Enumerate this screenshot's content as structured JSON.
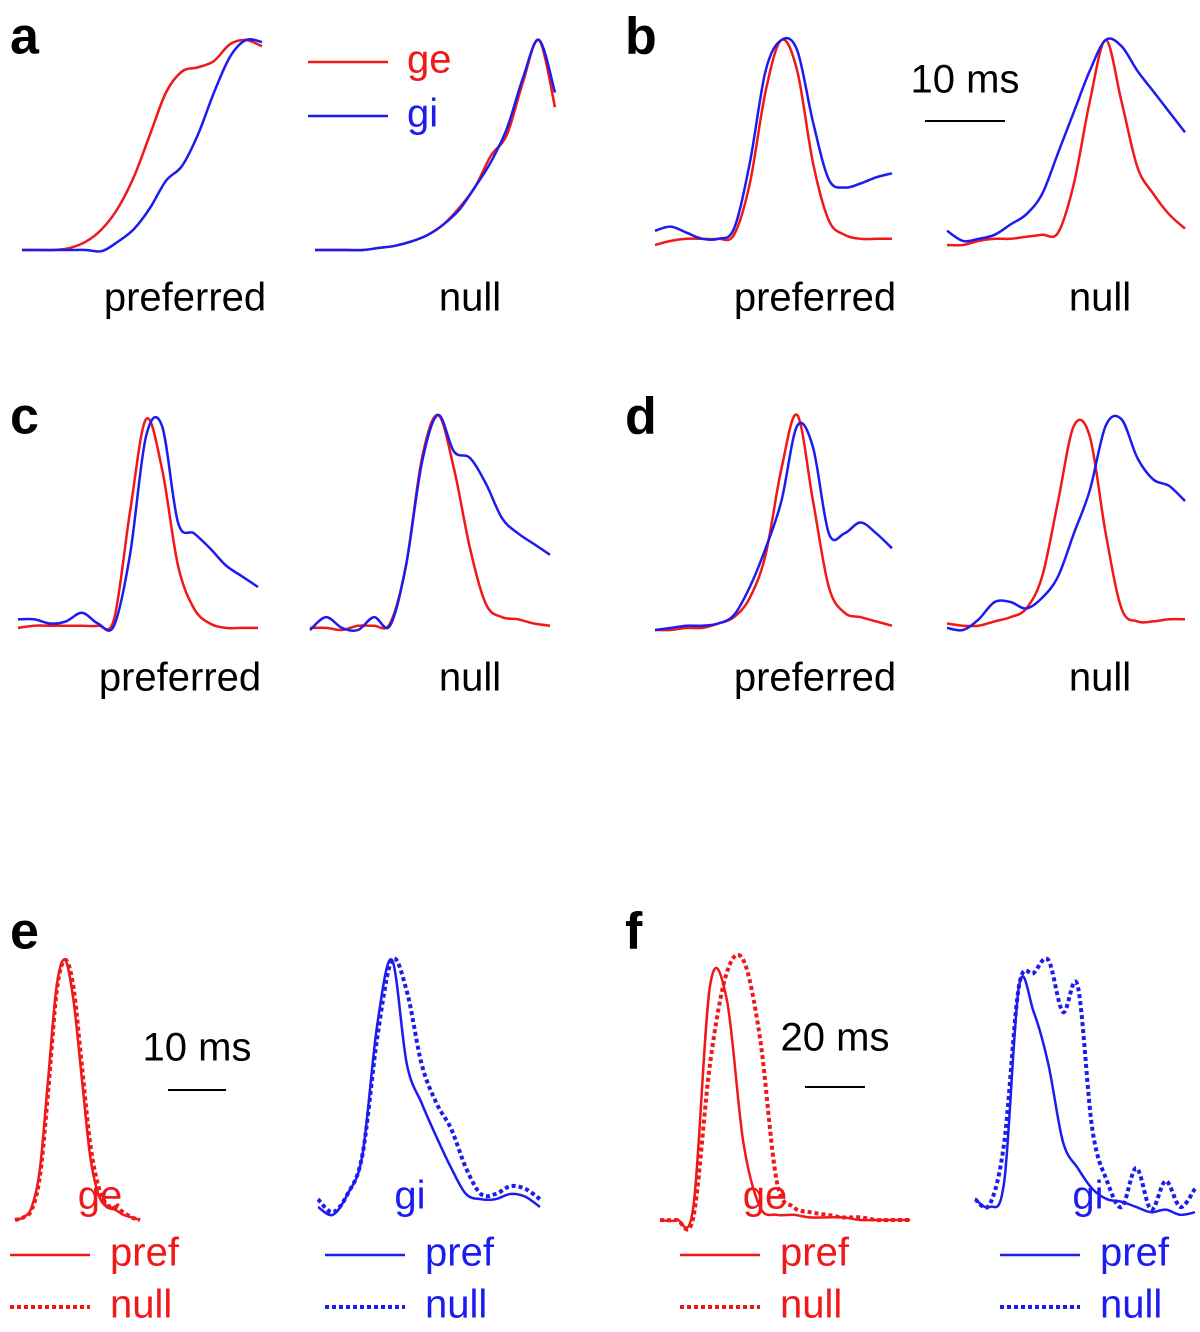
{
  "chart_data": [
    {
      "type": "line",
      "panel": "a",
      "legend": [
        {
          "name": "ge",
          "color": "#f01818"
        },
        {
          "name": "gi",
          "color": "#1c1cf0"
        }
      ],
      "subplots": [
        {
          "label": "preferred",
          "series": [
            {
              "color": "#f01818",
              "values": [
                0,
                0,
                0,
                0.01,
                0.04,
                0.1,
                0.2,
                0.35,
                0.55,
                0.75,
                0.85,
                0.87,
                0.9,
                0.98,
                1.0,
                0.97
              ]
            },
            {
              "color": "#1c1cf0",
              "values": [
                0,
                0,
                0,
                0,
                0,
                -0.005,
                0.04,
                0.1,
                0.2,
                0.33,
                0.4,
                0.55,
                0.75,
                0.92,
                1.0,
                0.99
              ]
            }
          ]
        },
        {
          "label": "null",
          "series": [
            {
              "color": "#f01818",
              "values": [
                0,
                0,
                0,
                0,
                0.01,
                0.02,
                0.04,
                0.07,
                0.12,
                0.2,
                0.3,
                0.45,
                0.55,
                0.8,
                1.0,
                0.68
              ]
            },
            {
              "color": "#1c1cf0",
              "values": [
                0,
                0,
                0,
                0,
                0.01,
                0.02,
                0.04,
                0.07,
                0.12,
                0.19,
                0.3,
                0.42,
                0.58,
                0.82,
                1.0,
                0.75
              ]
            }
          ]
        }
      ]
    },
    {
      "type": "line",
      "panel": "b",
      "scale_bar": "10 ms",
      "subplots": [
        {
          "label": "preferred",
          "series": [
            {
              "color": "#f01818",
              "values": [
                0,
                0.02,
                0.03,
                0.03,
                0.03,
                0.05,
                0.3,
                0.75,
                1.0,
                0.85,
                0.4,
                0.12,
                0.05,
                0.03,
                0.03,
                0.03
              ]
            },
            {
              "color": "#1c1cf0",
              "values": [
                0.07,
                0.09,
                0.06,
                0.03,
                0.03,
                0.08,
                0.4,
                0.85,
                1.0,
                0.95,
                0.6,
                0.32,
                0.28,
                0.3,
                0.33,
                0.35
              ]
            }
          ]
        },
        {
          "label": "null",
          "series": [
            {
              "color": "#f01818",
              "values": [
                0,
                0,
                0.02,
                0.03,
                0.03,
                0.04,
                0.05,
                0.06,
                0.3,
                0.7,
                1.0,
                0.7,
                0.38,
                0.25,
                0.15,
                0.08
              ]
            },
            {
              "color": "#1c1cf0",
              "values": [
                0.07,
                0.02,
                0.03,
                0.05,
                0.1,
                0.15,
                0.25,
                0.45,
                0.65,
                0.85,
                1.0,
                0.97,
                0.85,
                0.75,
                0.65,
                0.55
              ]
            }
          ]
        }
      ]
    },
    {
      "type": "line",
      "panel": "c",
      "subplots": [
        {
          "label": "preferred",
          "series": [
            {
              "color": "#f01818",
              "values": [
                0.01,
                0.02,
                0.02,
                0.02,
                0.02,
                0.02,
                0.05,
                0.55,
                0.98,
                0.75,
                0.3,
                0.1,
                0.03,
                0.01,
                0.01,
                0.01
              ]
            },
            {
              "color": "#1c1cf0",
              "values": [
                0.05,
                0.05,
                0.03,
                0.04,
                0.08,
                0.03,
                0.02,
                0.35,
                0.9,
                0.95,
                0.5,
                0.45,
                0.38,
                0.3,
                0.25,
                0.2
              ]
            }
          ]
        },
        {
          "label": "null",
          "series": [
            {
              "color": "#f01818",
              "values": [
                0.01,
                0.01,
                0,
                0.02,
                0.02,
                0.03,
                0.3,
                0.8,
                1.0,
                0.75,
                0.38,
                0.12,
                0.06,
                0.05,
                0.03,
                0.02
              ]
            },
            {
              "color": "#1c1cf0",
              "values": [
                0,
                0.06,
                0.01,
                0,
                0.06,
                0.02,
                0.3,
                0.78,
                1.0,
                0.83,
                0.8,
                0.68,
                0.52,
                0.45,
                0.4,
                0.35
              ]
            }
          ]
        }
      ]
    },
    {
      "type": "line",
      "panel": "d",
      "subplots": [
        {
          "label": "preferred",
          "series": [
            {
              "color": "#f01818",
              "values": [
                0,
                0,
                0.01,
                0.01,
                0.03,
                0.06,
                0.15,
                0.35,
                0.75,
                1.0,
                0.6,
                0.2,
                0.08,
                0.06,
                0.04,
                0.02
              ]
            },
            {
              "color": "#1c1cf0",
              "values": [
                0,
                0.01,
                0.02,
                0.02,
                0.03,
                0.07,
                0.2,
                0.38,
                0.6,
                0.95,
                0.85,
                0.45,
                0.45,
                0.5,
                0.45,
                0.38
              ]
            }
          ]
        },
        {
          "label": "null",
          "series": [
            {
              "color": "#f01818",
              "values": [
                0.03,
                0.02,
                0.02,
                0.04,
                0.06,
                0.1,
                0.25,
                0.6,
                0.95,
                0.9,
                0.45,
                0.1,
                0.04,
                0.04,
                0.05,
                0.05
              ]
            },
            {
              "color": "#1c1cf0",
              "values": [
                0.01,
                0,
                0.05,
                0.13,
                0.13,
                0.1,
                0.15,
                0.25,
                0.45,
                0.65,
                0.95,
                0.98,
                0.8,
                0.7,
                0.67,
                0.6
              ]
            }
          ]
        }
      ]
    },
    {
      "type": "line",
      "panel": "e",
      "scale_bar": "10 ms",
      "subplots": [
        {
          "label": "ge",
          "series": [
            {
              "name": "pref",
              "color": "#f01818",
              "style": "solid",
              "values": [
                0,
                0.01,
                0.05,
                0.2,
                0.55,
                0.9,
                1.0,
                0.85,
                0.55,
                0.25,
                0.1,
                0.05,
                0.04,
                0.02,
                0.01,
                0
              ]
            },
            {
              "name": "null",
              "color": "#f01818",
              "style": "dotted",
              "values": [
                0,
                0.01,
                0.04,
                0.17,
                0.5,
                0.88,
                1.0,
                0.9,
                0.6,
                0.3,
                0.13,
                0.06,
                0.05,
                0.03,
                0.01,
                0
              ]
            }
          ]
        },
        {
          "label": "gi",
          "series": [
            {
              "name": "pref",
              "color": "#1c1cf0",
              "style": "solid",
              "values": [
                0.05,
                0.02,
                0.1,
                0.25,
                0.75,
                1.0,
                0.6,
                0.45,
                0.32,
                0.2,
                0.1,
                0.08,
                0.08,
                0.1,
                0.09,
                0.05
              ]
            },
            {
              "name": "null",
              "color": "#1c1cf0",
              "style": "dotted",
              "values": [
                0.08,
                0.03,
                0.1,
                0.25,
                0.7,
                1.0,
                0.88,
                0.6,
                0.45,
                0.35,
                0.2,
                0.1,
                0.1,
                0.13,
                0.12,
                0.08
              ]
            }
          ]
        }
      ]
    },
    {
      "type": "line",
      "panel": "f",
      "scale_bar": "20 ms",
      "subplots": [
        {
          "label": "ge",
          "series": [
            {
              "name": "pref",
              "color": "#f01818",
              "style": "solid",
              "values": [
                0,
                0,
                0.05,
                0.9,
                0.85,
                0.3,
                0.05,
                0.02,
                0.02,
                0.01,
                0.01,
                0.01,
                0,
                0,
                0,
                0
              ]
            },
            {
              "name": "null",
              "color": "#f01818",
              "style": "dotted",
              "values": [
                0,
                0,
                0.01,
                0.6,
                0.95,
                1.0,
                0.7,
                0.15,
                0.05,
                0.03,
                0.02,
                0.01,
                0.01,
                0,
                0,
                0
              ]
            }
          ]
        },
        {
          "label": "gi",
          "series": [
            {
              "name": "pref",
              "color": "#1c1cf0",
              "style": "solid",
              "values": [
                0.08,
                0.05,
                0.15,
                0.9,
                0.8,
                0.6,
                0.3,
                0.2,
                0.12,
                0.08,
                0.07,
                0.05,
                0.03,
                0.04,
                0.02,
                0.03
              ]
            },
            {
              "name": "null",
              "color": "#1c1cf0",
              "style": "dotted",
              "values": [
                0.08,
                0.06,
                0.3,
                0.9,
                0.95,
                1.0,
                0.8,
                0.9,
                0.35,
                0.15,
                0.05,
                0.2,
                0.04,
                0.15,
                0.05,
                0.12
              ]
            }
          ]
        }
      ]
    }
  ]
}
